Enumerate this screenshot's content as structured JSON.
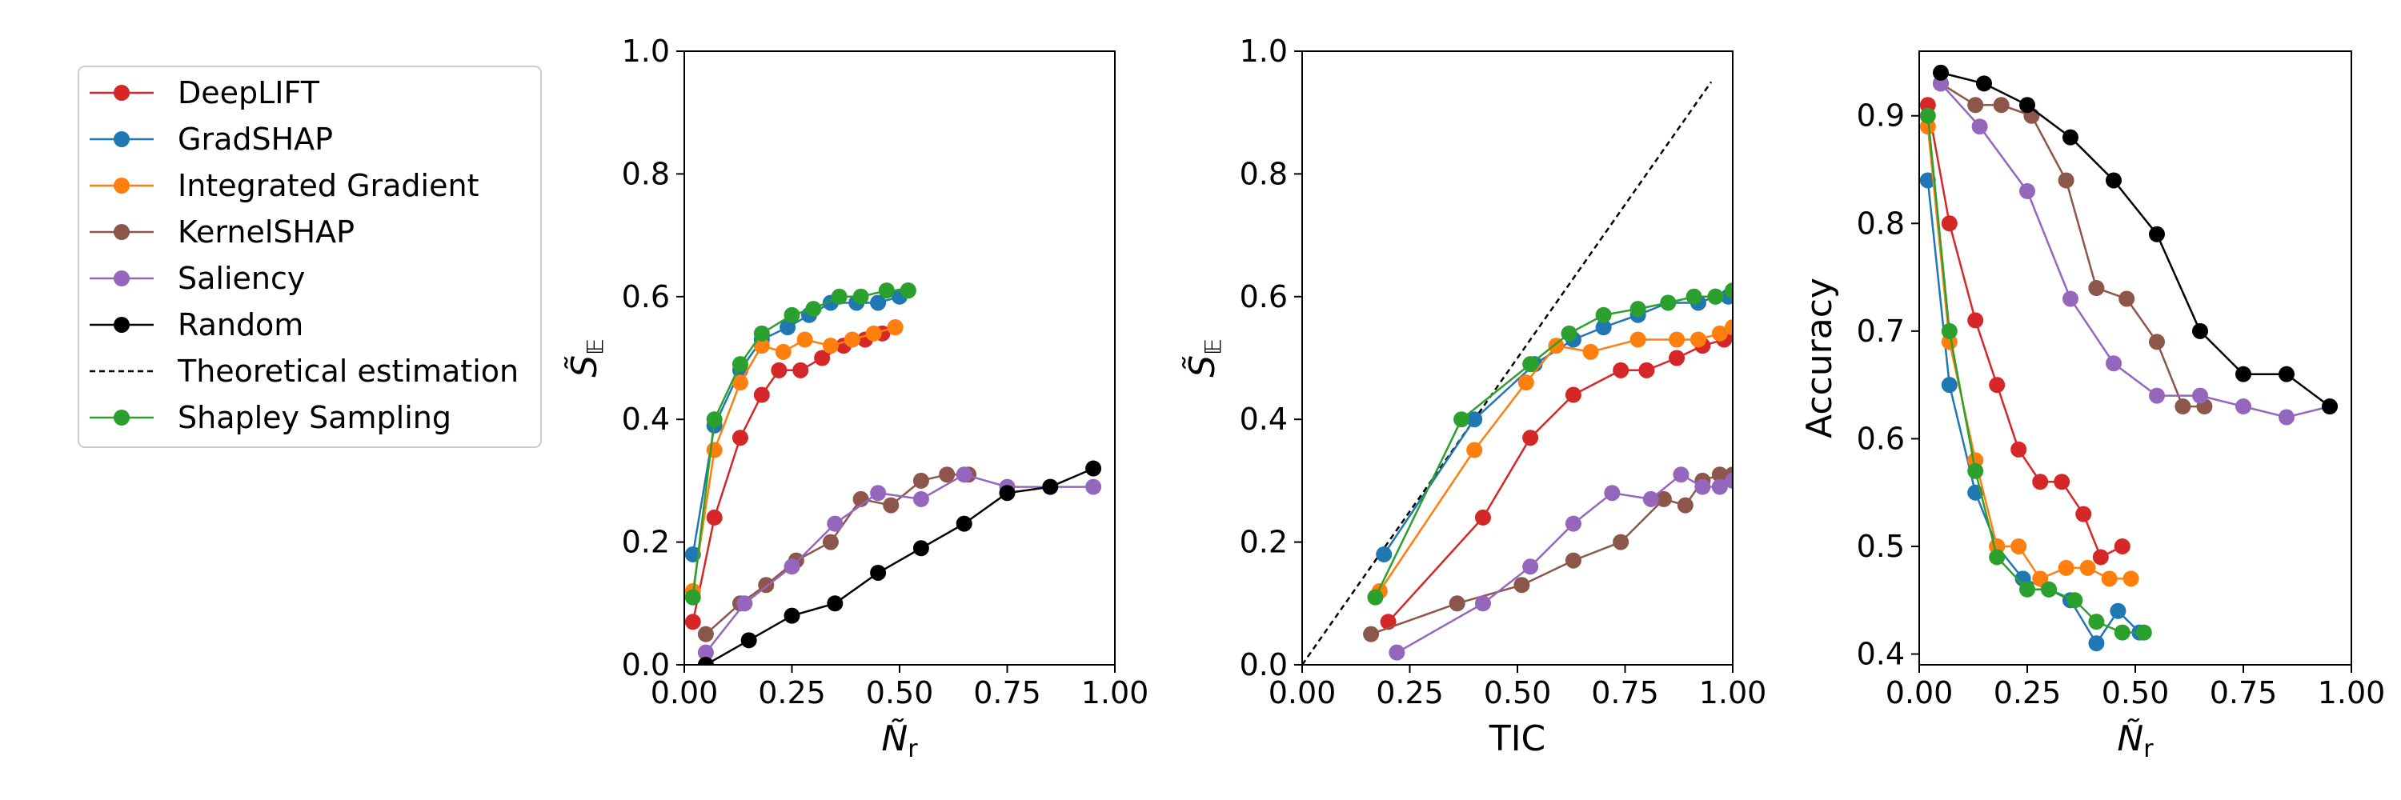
{
  "figure": {
    "series_colors": {
      "DeepLIFT": "#d62728",
      "GradSHAP": "#1f77b4",
      "Integrated Gradient": "#ff7f0e",
      "KernelSHAP": "#8c564b",
      "Saliency": "#9467bd",
      "Random": "#000000",
      "Theoretical estimation": "#000000",
      "Shapley Sampling": "#2ca02c"
    }
  },
  "legend": {
    "entries": [
      {
        "label": "DeepLIFT",
        "style": "line-marker"
      },
      {
        "label": "GradSHAP",
        "style": "line-marker"
      },
      {
        "label": "Integrated Gradient",
        "style": "line-marker"
      },
      {
        "label": "KernelSHAP",
        "style": "line-marker"
      },
      {
        "label": "Saliency",
        "style": "line-marker"
      },
      {
        "label": "Random",
        "style": "line-marker"
      },
      {
        "label": "Theoretical estimation",
        "style": "dashed"
      },
      {
        "label": "Shapley Sampling",
        "style": "line-marker"
      }
    ]
  },
  "chart_data": [
    {
      "type": "line",
      "xlabel": "Ñ_r",
      "ylabel": "S̃_𝔼",
      "xlim": [
        0,
        1
      ],
      "ylim": [
        0,
        1
      ],
      "xticks": [
        "0.00",
        "0.25",
        "0.50",
        "0.75",
        "1.00"
      ],
      "yticks": [
        "0.0",
        "0.2",
        "0.4",
        "0.6",
        "0.8",
        "1.0"
      ],
      "series": [
        {
          "name": "DeepLIFT",
          "x": [
            0.02,
            0.07,
            0.13,
            0.18,
            0.22,
            0.27,
            0.32,
            0.37,
            0.42,
            0.46,
            0.49
          ],
          "y": [
            0.07,
            0.24,
            0.37,
            0.44,
            0.48,
            0.48,
            0.5,
            0.52,
            0.53,
            0.54,
            0.55
          ]
        },
        {
          "name": "GradSHAP",
          "x": [
            0.02,
            0.07,
            0.13,
            0.18,
            0.24,
            0.29,
            0.34,
            0.4,
            0.45,
            0.5,
            0.52
          ],
          "y": [
            0.18,
            0.39,
            0.48,
            0.53,
            0.55,
            0.57,
            0.59,
            0.59,
            0.59,
            0.6,
            0.61
          ]
        },
        {
          "name": "Integrated Gradient",
          "x": [
            0.02,
            0.07,
            0.13,
            0.18,
            0.23,
            0.28,
            0.34,
            0.39,
            0.44,
            0.49
          ],
          "y": [
            0.12,
            0.35,
            0.46,
            0.52,
            0.51,
            0.53,
            0.52,
            0.53,
            0.54,
            0.55
          ]
        },
        {
          "name": "KernelSHAP",
          "x": [
            0.05,
            0.13,
            0.19,
            0.26,
            0.34,
            0.41,
            0.48,
            0.55,
            0.61,
            0.66
          ],
          "y": [
            0.05,
            0.1,
            0.13,
            0.17,
            0.2,
            0.27,
            0.26,
            0.3,
            0.31,
            0.31
          ]
        },
        {
          "name": "Saliency",
          "x": [
            0.05,
            0.14,
            0.25,
            0.35,
            0.45,
            0.55,
            0.65,
            0.75,
            0.85,
            0.95
          ],
          "y": [
            0.02,
            0.1,
            0.16,
            0.23,
            0.28,
            0.27,
            0.31,
            0.29,
            0.29,
            0.29
          ]
        },
        {
          "name": "Random",
          "x": [
            0.05,
            0.15,
            0.25,
            0.35,
            0.45,
            0.55,
            0.65,
            0.75,
            0.85,
            0.95
          ],
          "y": [
            0.0,
            0.04,
            0.08,
            0.1,
            0.15,
            0.19,
            0.23,
            0.28,
            0.29,
            0.32
          ]
        },
        {
          "name": "Shapley Sampling",
          "x": [
            0.02,
            0.07,
            0.13,
            0.18,
            0.25,
            0.3,
            0.36,
            0.41,
            0.47,
            0.52
          ],
          "y": [
            0.11,
            0.4,
            0.49,
            0.54,
            0.57,
            0.58,
            0.6,
            0.6,
            0.61,
            0.61
          ]
        }
      ]
    },
    {
      "type": "line",
      "xlabel": "TIC",
      "ylabel": "S̃_𝔼",
      "xlim": [
        0,
        1
      ],
      "ylim": [
        0,
        1
      ],
      "xticks": [
        "0.00",
        "0.25",
        "0.50",
        "0.75",
        "1.00"
      ],
      "yticks": [
        "0.0",
        "0.2",
        "0.4",
        "0.6",
        "0.8",
        "1.0"
      ],
      "series": [
        {
          "name": "Theoretical estimation",
          "x": [
            0.0,
            0.95
          ],
          "y": [
            0.0,
            0.95
          ],
          "dashed": true
        },
        {
          "name": "DeepLIFT",
          "x": [
            0.2,
            0.42,
            0.53,
            0.63,
            0.74,
            0.8,
            0.87,
            0.93,
            0.98,
            1.0
          ],
          "y": [
            0.07,
            0.24,
            0.37,
            0.44,
            0.48,
            0.48,
            0.5,
            0.52,
            0.53,
            0.54
          ]
        },
        {
          "name": "GradSHAP",
          "x": [
            0.19,
            0.4,
            0.54,
            0.63,
            0.7,
            0.78,
            0.85,
            0.92,
            0.96,
            0.99
          ],
          "y": [
            0.18,
            0.4,
            0.49,
            0.53,
            0.55,
            0.57,
            0.59,
            0.59,
            0.6,
            0.6
          ]
        },
        {
          "name": "Integrated Gradient",
          "x": [
            0.18,
            0.4,
            0.52,
            0.59,
            0.67,
            0.78,
            0.87,
            0.92,
            0.97,
            1.0
          ],
          "y": [
            0.12,
            0.35,
            0.46,
            0.52,
            0.51,
            0.53,
            0.53,
            0.53,
            0.54,
            0.55
          ]
        },
        {
          "name": "KernelSHAP",
          "x": [
            0.16,
            0.36,
            0.51,
            0.63,
            0.74,
            0.84,
            0.89,
            0.93,
            0.97,
            1.0
          ],
          "y": [
            0.05,
            0.1,
            0.13,
            0.17,
            0.2,
            0.27,
            0.26,
            0.3,
            0.31,
            0.31
          ]
        },
        {
          "name": "Saliency",
          "x": [
            0.22,
            0.42,
            0.53,
            0.63,
            0.72,
            0.81,
            0.88,
            0.93,
            0.97,
            1.0
          ],
          "y": [
            0.02,
            0.1,
            0.16,
            0.23,
            0.28,
            0.27,
            0.31,
            0.29,
            0.29,
            0.3
          ]
        },
        {
          "name": "Shapley Sampling",
          "x": [
            0.17,
            0.37,
            0.53,
            0.62,
            0.7,
            0.78,
            0.85,
            0.91,
            0.96,
            1.0
          ],
          "y": [
            0.11,
            0.4,
            0.49,
            0.54,
            0.57,
            0.58,
            0.59,
            0.6,
            0.6,
            0.61
          ]
        }
      ]
    },
    {
      "type": "line",
      "xlabel": "Ñ_r",
      "ylabel": "Accuracy",
      "xlim": [
        0,
        1
      ],
      "ylim": [
        0.39,
        0.96
      ],
      "xticks": [
        "0.00",
        "0.25",
        "0.50",
        "0.75",
        "1.00"
      ],
      "yticks": [
        "0.4",
        "0.5",
        "0.6",
        "0.7",
        "0.8",
        "0.9"
      ],
      "series": [
        {
          "name": "DeepLIFT",
          "x": [
            0.02,
            0.07,
            0.13,
            0.18,
            0.23,
            0.28,
            0.33,
            0.38,
            0.42,
            0.47
          ],
          "y": [
            0.91,
            0.8,
            0.71,
            0.65,
            0.59,
            0.56,
            0.56,
            0.53,
            0.49,
            0.5
          ]
        },
        {
          "name": "GradSHAP",
          "x": [
            0.02,
            0.07,
            0.13,
            0.18,
            0.24,
            0.3,
            0.35,
            0.41,
            0.46,
            0.51
          ],
          "y": [
            0.84,
            0.65,
            0.55,
            0.5,
            0.47,
            0.46,
            0.45,
            0.41,
            0.44,
            0.42
          ]
        },
        {
          "name": "Integrated Gradient",
          "x": [
            0.02,
            0.07,
            0.13,
            0.18,
            0.23,
            0.28,
            0.34,
            0.39,
            0.44,
            0.49
          ],
          "y": [
            0.89,
            0.69,
            0.58,
            0.5,
            0.5,
            0.47,
            0.48,
            0.48,
            0.47,
            0.47
          ]
        },
        {
          "name": "KernelSHAP",
          "x": [
            0.05,
            0.13,
            0.19,
            0.26,
            0.34,
            0.41,
            0.48,
            0.55,
            0.61,
            0.66
          ],
          "y": [
            0.93,
            0.91,
            0.91,
            0.9,
            0.84,
            0.74,
            0.73,
            0.69,
            0.63,
            0.63
          ]
        },
        {
          "name": "Saliency",
          "x": [
            0.05,
            0.14,
            0.25,
            0.35,
            0.45,
            0.55,
            0.65,
            0.75,
            0.85,
            0.95
          ],
          "y": [
            0.93,
            0.89,
            0.83,
            0.73,
            0.67,
            0.64,
            0.64,
            0.63,
            0.62,
            0.63
          ]
        },
        {
          "name": "Random",
          "x": [
            0.05,
            0.15,
            0.25,
            0.35,
            0.45,
            0.55,
            0.65,
            0.75,
            0.85,
            0.95
          ],
          "y": [
            0.94,
            0.93,
            0.91,
            0.88,
            0.84,
            0.79,
            0.7,
            0.66,
            0.66,
            0.63
          ]
        },
        {
          "name": "Shapley Sampling",
          "x": [
            0.02,
            0.07,
            0.13,
            0.18,
            0.25,
            0.3,
            0.36,
            0.41,
            0.47,
            0.52
          ],
          "y": [
            0.9,
            0.7,
            0.57,
            0.49,
            0.46,
            0.46,
            0.45,
            0.43,
            0.42,
            0.42
          ]
        }
      ]
    }
  ]
}
